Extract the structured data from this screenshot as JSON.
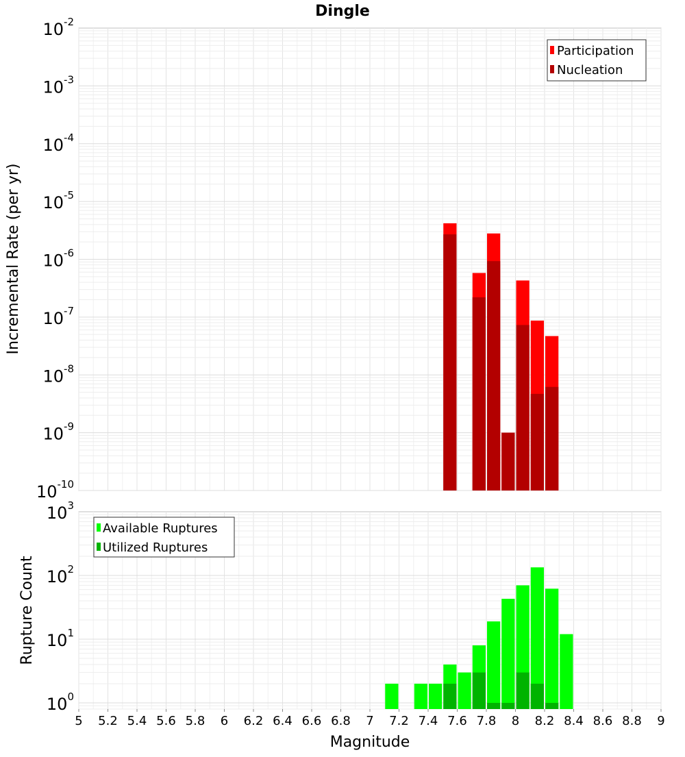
{
  "chart_data": [
    {
      "type": "bar",
      "panel": "rate",
      "title": "Dingle",
      "ylabel": "Incremental Rate (per yr)",
      "yscale": "log",
      "ylim": [
        1e-10,
        0.01
      ],
      "yticks": [
        {
          "base": "10",
          "exp": "-10"
        },
        {
          "base": "10",
          "exp": "-9"
        },
        {
          "base": "10",
          "exp": "-8"
        },
        {
          "base": "10",
          "exp": "-7"
        },
        {
          "base": "10",
          "exp": "-6"
        },
        {
          "base": "10",
          "exp": "-5"
        },
        {
          "base": "10",
          "exp": "-4"
        },
        {
          "base": "10",
          "exp": "-3"
        },
        {
          "base": "10",
          "exp": "-2"
        }
      ],
      "xlim": [
        5,
        9
      ],
      "bar_width": 0.1,
      "legend": {
        "position": "top-right",
        "entries": [
          "Participation",
          "Nucleation"
        ]
      },
      "series": [
        {
          "name": "Participation",
          "color": "#ff0000",
          "points": [
            {
              "x": 7.55,
              "y": 4.2e-06
            },
            {
              "x": 7.75,
              "y": 5.8e-07
            },
            {
              "x": 7.85,
              "y": 2.8e-06
            },
            {
              "x": 7.95,
              "y": 1e-09
            },
            {
              "x": 8.05,
              "y": 4.3e-07
            },
            {
              "x": 8.15,
              "y": 8.7e-08
            },
            {
              "x": 8.25,
              "y": 4.7e-08
            }
          ]
        },
        {
          "name": "Nucleation",
          "color": "#b30000",
          "points": [
            {
              "x": 7.55,
              "y": 2.7e-06
            },
            {
              "x": 7.75,
              "y": 2.2e-07
            },
            {
              "x": 7.85,
              "y": 9.3e-07
            },
            {
              "x": 7.95,
              "y": 1e-09
            },
            {
              "x": 8.05,
              "y": 7.3e-08
            },
            {
              "x": 8.15,
              "y": 4.7e-09
            },
            {
              "x": 8.25,
              "y": 6.2e-09
            }
          ]
        }
      ]
    },
    {
      "type": "bar",
      "panel": "count",
      "xlabel": "Magnitude",
      "ylabel": "Rupture Count",
      "yscale": "log",
      "ylim": [
        0.8,
        1000
      ],
      "yticks": [
        {
          "value": 1,
          "base": "10",
          "exp": "0"
        },
        {
          "value": 10,
          "base": "10",
          "exp": "1"
        },
        {
          "value": 100,
          "base": "10",
          "exp": "2"
        },
        {
          "value": 1000,
          "base": "10",
          "exp": "3"
        }
      ],
      "xlim": [
        5,
        9
      ],
      "xticks": [
        "5",
        "5.2",
        "5.4",
        "5.6",
        "5.8",
        "6",
        "6.2",
        "6.4",
        "6.6",
        "6.8",
        "7",
        "7.2",
        "7.4",
        "7.6",
        "7.8",
        "8",
        "8.2",
        "8.4",
        "8.6",
        "8.8",
        "9"
      ],
      "bar_width": 0.1,
      "legend": {
        "position": "top-left",
        "entries": [
          "Available Ruptures",
          "Utilized Ruptures"
        ]
      },
      "series": [
        {
          "name": "Available Ruptures",
          "color": "#00ff00",
          "points": [
            {
              "x": 7.15,
              "y": 2
            },
            {
              "x": 7.35,
              "y": 2
            },
            {
              "x": 7.45,
              "y": 2
            },
            {
              "x": 7.55,
              "y": 4
            },
            {
              "x": 7.65,
              "y": 3
            },
            {
              "x": 7.75,
              "y": 8
            },
            {
              "x": 7.85,
              "y": 19
            },
            {
              "x": 7.95,
              "y": 43
            },
            {
              "x": 8.05,
              "y": 70
            },
            {
              "x": 8.15,
              "y": 134
            },
            {
              "x": 8.25,
              "y": 62
            },
            {
              "x": 8.35,
              "y": 12
            }
          ]
        },
        {
          "name": "Utilized Ruptures",
          "color": "#00b300",
          "points": [
            {
              "x": 7.55,
              "y": 2
            },
            {
              "x": 7.75,
              "y": 3
            },
            {
              "x": 7.85,
              "y": 1
            },
            {
              "x": 7.95,
              "y": 1
            },
            {
              "x": 8.05,
              "y": 3
            },
            {
              "x": 8.15,
              "y": 2
            },
            {
              "x": 8.25,
              "y": 1
            }
          ]
        }
      ]
    }
  ]
}
